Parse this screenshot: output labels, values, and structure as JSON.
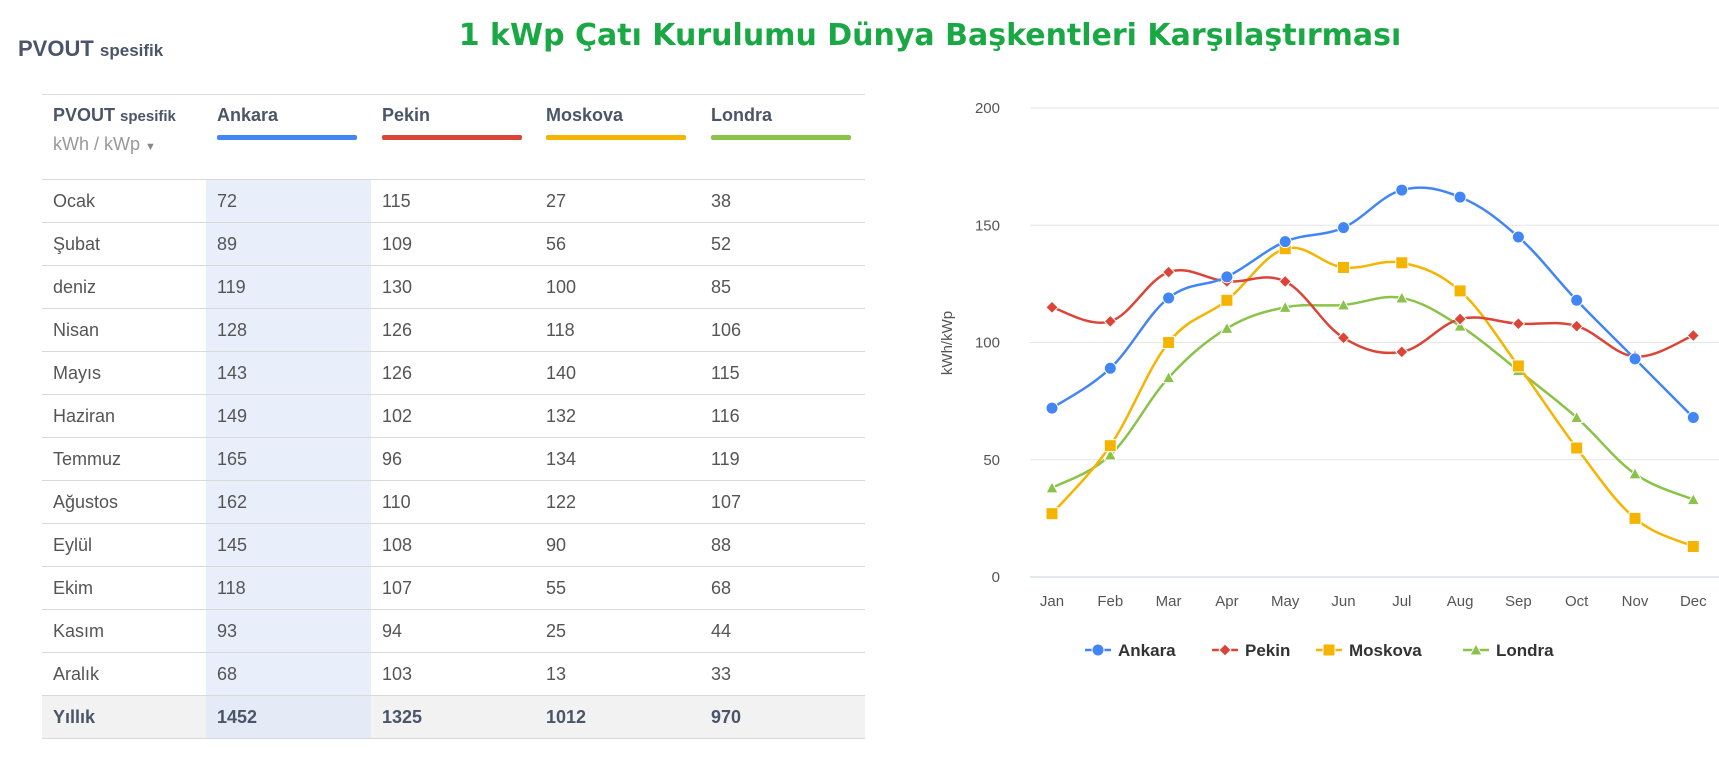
{
  "heading": {
    "main": "PVOUT",
    "suffix": "spesifik"
  },
  "title": "1 kWp Çatı Kurulumu Dünya Başkentleri Karşılaştırması",
  "table": {
    "corner_label": "PVOUT",
    "corner_suffix": "spesifik",
    "unit": "kWh / kWp",
    "columns": [
      {
        "name": "Ankara",
        "color": "#4285f4"
      },
      {
        "name": "Pekin",
        "color": "#db4437"
      },
      {
        "name": "Moskova",
        "color": "#f4b400"
      },
      {
        "name": "Londra",
        "color": "#8bc34a"
      }
    ],
    "rows": [
      {
        "label": "Ocak",
        "values": [
          "72",
          "115",
          "27",
          "38"
        ]
      },
      {
        "label": "Şubat",
        "values": [
          "89",
          "109",
          "56",
          "52"
        ]
      },
      {
        "label": "deniz",
        "values": [
          "119",
          "130",
          "100",
          "85"
        ]
      },
      {
        "label": "Nisan",
        "values": [
          "128",
          "126",
          "118",
          "106"
        ]
      },
      {
        "label": "Mayıs",
        "values": [
          "143",
          "126",
          "140",
          "115"
        ]
      },
      {
        "label": "Haziran",
        "values": [
          "149",
          "102",
          "132",
          "116"
        ]
      },
      {
        "label": "Temmuz",
        "values": [
          "165",
          "96",
          "134",
          "119"
        ]
      },
      {
        "label": "Ağustos",
        "values": [
          "162",
          "110",
          "122",
          "107"
        ]
      },
      {
        "label": "Eylül",
        "values": [
          "145",
          "108",
          "90",
          "88"
        ]
      },
      {
        "label": "Ekim",
        "values": [
          "118",
          "107",
          "55",
          "68"
        ]
      },
      {
        "label": "Kasım",
        "values": [
          "93",
          "94",
          "25",
          "44"
        ]
      },
      {
        "label": "Aralık",
        "values": [
          "68",
          "103",
          "13",
          "33"
        ]
      }
    ],
    "total": {
      "label": "Yıllık",
      "values": [
        "1452",
        "1325",
        "1012",
        "970"
      ]
    }
  },
  "chart_data": {
    "type": "line",
    "x": [
      "Jan",
      "Feb",
      "Mar",
      "Apr",
      "May",
      "Jun",
      "Jul",
      "Aug",
      "Sep",
      "Oct",
      "Nov",
      "Dec"
    ],
    "ylabel": "kWh/kWp",
    "ylim": [
      0,
      200
    ],
    "yticks": [
      0,
      50,
      100,
      150,
      200
    ],
    "grid": true,
    "legend": "bottom",
    "series": [
      {
        "name": "Ankara",
        "color": "#4285f4",
        "marker": "circle",
        "values": [
          72,
          89,
          119,
          128,
          143,
          149,
          165,
          162,
          145,
          118,
          93,
          68
        ]
      },
      {
        "name": "Pekin",
        "color": "#db4437",
        "marker": "diamond",
        "values": [
          115,
          109,
          130,
          126,
          126,
          102,
          96,
          110,
          108,
          107,
          94,
          103
        ]
      },
      {
        "name": "Moskova",
        "color": "#f4b400",
        "marker": "square",
        "values": [
          27,
          56,
          100,
          118,
          140,
          132,
          134,
          122,
          90,
          55,
          25,
          13
        ]
      },
      {
        "name": "Londra",
        "color": "#8bc34a",
        "marker": "triangle",
        "values": [
          38,
          52,
          85,
          106,
          115,
          116,
          119,
          107,
          88,
          68,
          44,
          33
        ]
      }
    ]
  }
}
